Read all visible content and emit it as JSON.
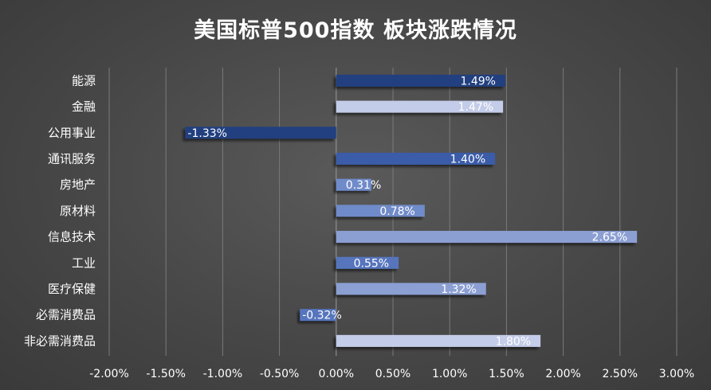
{
  "chart_data": {
    "type": "bar",
    "orientation": "horizontal",
    "title": "美国标普500指数 板块涨跌情况",
    "categories": [
      "能源",
      "金融",
      "公用事业",
      "通讯服务",
      "房地产",
      "原材料",
      "信息技术",
      "工业",
      "医疗保健",
      "必需消费品",
      "非必需消费品"
    ],
    "values": [
      1.49,
      1.47,
      -1.33,
      1.4,
      0.31,
      0.78,
      2.65,
      0.55,
      1.32,
      -0.32,
      1.8
    ],
    "value_labels": [
      "1.49%",
      "1.47%",
      "-1.33%",
      "1.40%",
      "0.31%",
      "0.78%",
      "2.65%",
      "0.55%",
      "1.32%",
      "-0.32%",
      "1.80%"
    ],
    "xlim": [
      -2.0,
      3.0
    ],
    "xticks": [
      -2.0,
      -1.5,
      -1.0,
      -0.5,
      0.0,
      0.5,
      1.0,
      1.5,
      2.0,
      2.5,
      3.0
    ],
    "xtick_labels": [
      "-2.00%",
      "-1.50%",
      "-1.00%",
      "-0.50%",
      "0.00%",
      "0.50%",
      "1.00%",
      "1.50%",
      "2.00%",
      "2.50%",
      "3.00%"
    ],
    "xlabel": "",
    "ylabel": "",
    "grid": "vertical",
    "legend": "none",
    "colors": {
      "background": "#474747",
      "gridline": "#7a7a7a",
      "text": "#ffffff",
      "bar_gradient": [
        "#223f80",
        "#3a5ba8",
        "#5674bd",
        "#6f8bc9",
        "#8b9fd3",
        "#a6b4dd",
        "#c3cce8"
      ]
    }
  }
}
